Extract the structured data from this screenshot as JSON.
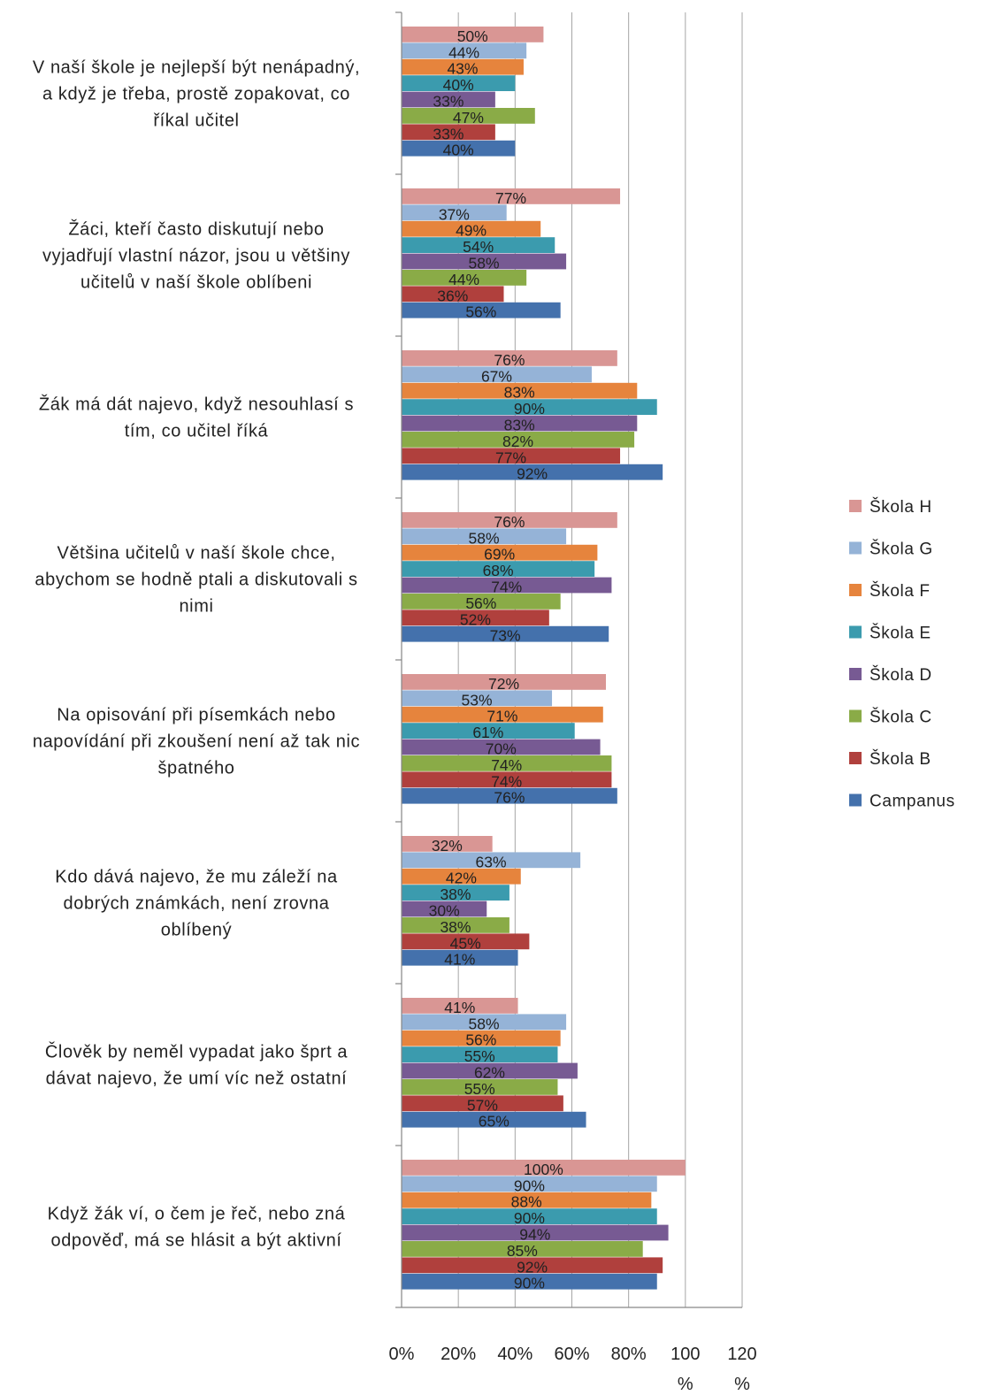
{
  "chart_data": {
    "type": "bar",
    "orientation": "horizontal",
    "categories": [
      [
        "V naší škole je nejlepší být nenápadný,",
        "a když je třeba, prostě zopakovat, co",
        "říkal učitel"
      ],
      [
        "Žáci, kteří často diskutují nebo",
        "vyjadřují vlastní názor, jsou u většiny",
        "učitelů v naší škole oblíbeni"
      ],
      [
        "Žák má dát najevo, když nesouhlasí s",
        "tím, co učitel říká"
      ],
      [
        "Většina učitelů v naší škole chce,",
        "abychom se hodně ptali a diskutovali s",
        "nimi"
      ],
      [
        "Na opisování při písemkách nebo",
        "napovídání při zkoušení není až tak nic",
        "špatného"
      ],
      [
        "Kdo dává najevo, že mu záleží na",
        "dobrých známkách, není zrovna",
        "oblíbený"
      ],
      [
        "Člověk by neměl vypadat jako šprt a",
        "dávat najevo, že umí víc než ostatní"
      ],
      [
        "Když žák ví, o čem je řeč, nebo zná",
        "odpověď, má se hlásit a být aktivní"
      ]
    ],
    "series": [
      {
        "name": "Škola H",
        "color": "#D99694",
        "values": [
          50,
          77,
          76,
          76,
          72,
          32,
          41,
          100
        ],
        "labels": [
          "50%",
          "77%",
          "76%",
          "76%",
          "72%",
          "32%",
          "41%",
          "100%"
        ]
      },
      {
        "name": "Škola G",
        "color": "#95B3D7",
        "values": [
          44,
          37,
          67,
          58,
          53,
          63,
          58,
          90
        ],
        "labels": [
          "44%",
          "37%",
          "67%",
          "58%",
          "53%",
          "63%",
          "58%",
          "90%"
        ]
      },
      {
        "name": "Škola F",
        "color": "#E6843D",
        "values": [
          43,
          49,
          83,
          69,
          71,
          42,
          56,
          88
        ],
        "labels": [
          "43%",
          "49%",
          "83%",
          "69%",
          "71%",
          "42%",
          "56%",
          "88%"
        ]
      },
      {
        "name": "Škola E",
        "color": "#3B9BAE",
        "values": [
          40,
          54,
          90,
          68,
          61,
          38,
          55,
          90
        ],
        "labels": [
          "40%",
          "54%",
          "90%",
          "68%",
          "61%",
          "38%",
          "55%",
          "90%"
        ]
      },
      {
        "name": "Škola D",
        "color": "#775A93",
        "values": [
          33,
          58,
          83,
          74,
          70,
          30,
          62,
          94
        ],
        "labels": [
          "33%",
          "58%",
          "83%",
          "74%",
          "70%",
          "30%",
          "62%",
          "94%"
        ]
      },
      {
        "name": "Škola C",
        "color": "#8AAB47",
        "values": [
          47,
          44,
          82,
          56,
          74,
          38,
          55,
          85
        ],
        "labels": [
          "47%",
          "44%",
          "82%",
          "56%",
          "74%",
          "38%",
          "55%",
          "85%"
        ]
      },
      {
        "name": "Škola B",
        "color": "#B0403D",
        "values": [
          33,
          36,
          77,
          52,
          74,
          45,
          57,
          92
        ],
        "labels": [
          "33%",
          "36%",
          "77%",
          "52%",
          "74%",
          "45%",
          "57%",
          "92%"
        ]
      },
      {
        "name": "Campanus",
        "color": "#4471AC",
        "values": [
          40,
          56,
          92,
          73,
          76,
          41,
          65,
          90
        ],
        "labels": [
          "40%",
          "56%",
          "92%",
          "73%",
          "76%",
          "41%",
          "65%",
          "90%"
        ]
      }
    ],
    "xlim": [
      0,
      120
    ],
    "xticks": [
      0,
      20,
      40,
      60,
      80,
      100,
      120
    ],
    "xtick_labels": [
      [
        "0%"
      ],
      [
        "20%"
      ],
      [
        "40%"
      ],
      [
        "60%"
      ],
      [
        "80%"
      ],
      [
        "100",
        "%"
      ],
      [
        "120",
        "%"
      ]
    ],
    "grid": "vertical",
    "legend": "right",
    "legend_order": [
      0,
      1,
      2,
      3,
      4,
      5,
      6,
      7
    ],
    "gridline_color": "#A6A6A6",
    "axis_color": "#868686",
    "text_color": "#222222"
  }
}
